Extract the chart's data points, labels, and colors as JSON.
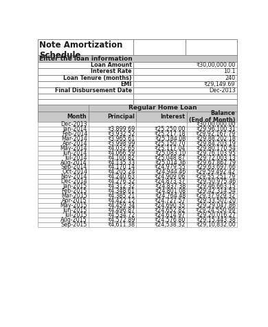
{
  "title_line1": "Note Amortization",
  "title_line2": "Schedule",
  "loan_info_header": "Enter the loan information",
  "loan_fields": [
    [
      "Loan Amount",
      "₹30,00,000.00"
    ],
    [
      "Interest Rate",
      "10.1"
    ],
    [
      "Loan Tenure (months)",
      "240"
    ],
    [
      "EMI",
      "₹29,149.69"
    ],
    [
      "Final Disbursement Date",
      "Dec-2013"
    ]
  ],
  "table_header1": "Regular Home Loan",
  "col_headers": [
    "Month",
    "Principal",
    "Interest",
    "Balance\n(End of Month)"
  ],
  "rows": [
    [
      "Dec-2013",
      "",
      "",
      "₹30,00,000.00"
    ],
    [
      "Jan-2014",
      "₹3,899.69",
      "₹25,250.00",
      "₹29,96,100.31"
    ],
    [
      "Feb-2014",
      "₹3,932.52",
      "₹25,217.18",
      "₹29,92,167.79"
    ],
    [
      "Mar-2014",
      "₹3,965.61",
      "₹25,184.08",
      "₹29,88,202.18"
    ],
    [
      "Apr-2014",
      "₹3,998.99",
      "₹25,150.70",
      "₹29,84,203.19"
    ],
    [
      "May-2014",
      "₹4,032.65",
      "₹25,117.04",
      "₹29,80,170.54"
    ],
    [
      "Jun-2014",
      "₹4,066.59",
      "₹25,083.10",
      "₹29,76,103.95"
    ],
    [
      "Jul-2014",
      "₹4,100.82",
      "₹25,048.87",
      "₹29,72,003.13"
    ],
    [
      "Aug-2014",
      "₹4,135.33",
      "₹25,014.36",
      "₹29,67,867.79"
    ],
    [
      "Sep-2014",
      "₹4,170.14",
      "₹24,979.55",
      "₹29,63,697.66"
    ],
    [
      "Oct-2014",
      "₹4,205.24",
      "₹24,944.46",
      "₹29,59,492.42"
    ],
    [
      "Nov-2014",
      "₹4,240.63",
      "₹24,909.06",
      "₹29,55,251.79"
    ],
    [
      "Dec-2014",
      "₹4,276.32",
      "₹24,873.37",
      "₹29,50,975.46"
    ],
    [
      "Jan-2015",
      "₹4,312.32",
      "₹24,837.38",
      "₹29,46,663.15"
    ],
    [
      "Feb-2015",
      "₹4,348.61",
      "₹24,801.08",
      "₹29,42,314.54"
    ],
    [
      "Mar-2015",
      "₹4,385.21",
      "₹24,764.48",
      "₹29,37,929.32"
    ],
    [
      "Apr-2015",
      "₹4,422.12",
      "₹24,727.57",
      "₹29,33,507.20"
    ],
    [
      "May-2015",
      "₹4,459.34",
      "₹24,690.35",
      "₹29,29,047.86"
    ],
    [
      "Jun-2015",
      "₹4,496.87",
      "₹24,652.82",
      "₹29,24,550.99"
    ],
    [
      "Jul-2015",
      "₹4,534.72",
      "₹24,614.97",
      "₹29,20,016.27"
    ],
    [
      "Aug-2015",
      "₹4,572.89",
      "₹24,576.80",
      "₹29,15,443.38"
    ],
    [
      "Sep-2015",
      "₹4,611.38",
      "₹24,538.32",
      "₹29,10,832.00"
    ]
  ],
  "bg_white": "#ffffff",
  "bg_light_gray": "#c8c8c8",
  "text_dark": "#1a1a1a",
  "border_color": "#888888",
  "title_font_size": 8.5,
  "cell_font_size": 5.8,
  "header_font_size": 6.5
}
